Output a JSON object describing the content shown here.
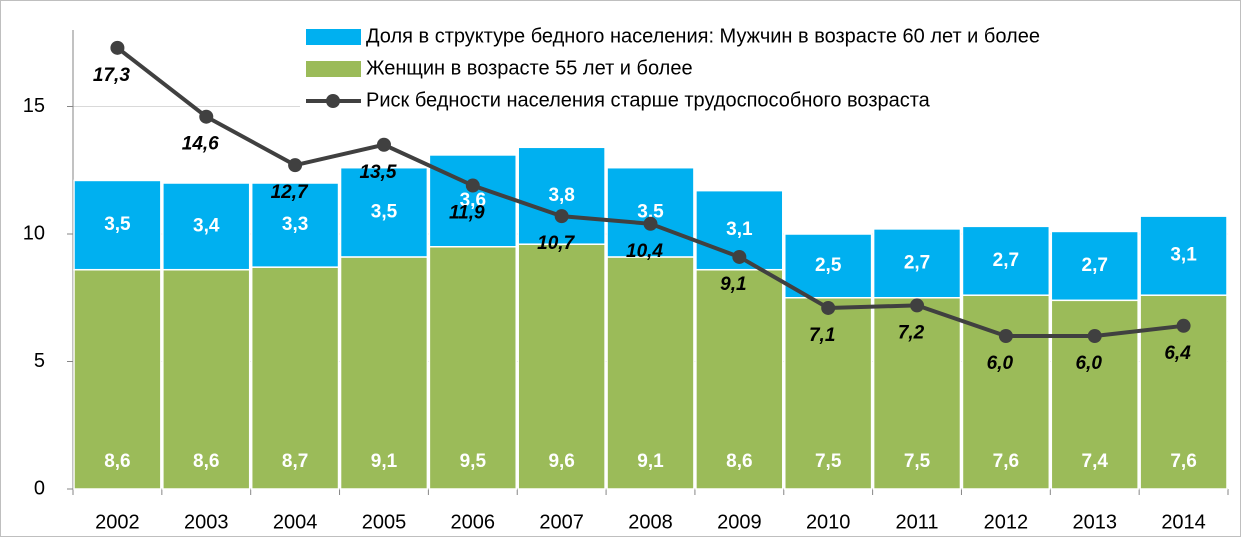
{
  "chart_data": {
    "type": "bar",
    "stacked": true,
    "categories": [
      "2002",
      "2003",
      "2004",
      "2005",
      "2006",
      "2007",
      "2008",
      "2009",
      "2010",
      "2011",
      "2012",
      "2013",
      "2014"
    ],
    "series": [
      {
        "name": "Женщин в возрасте 55 лет и более",
        "color": "#9bbb59",
        "values": [
          8.6,
          8.6,
          8.7,
          9.1,
          9.5,
          9.6,
          9.1,
          8.6,
          7.5,
          7.5,
          7.6,
          7.4,
          7.6
        ],
        "value_labels": [
          "8,6",
          "8,6",
          "8,7",
          "9,1",
          "9,5",
          "9,6",
          "9,1",
          "8,6",
          "7,5",
          "7,5",
          "7,6",
          "7,4",
          "7,6"
        ]
      },
      {
        "name": "Доля в структуре бедного населения: Мужчин в возрасте 60 лет и более",
        "color": "#00b0f0",
        "values": [
          3.5,
          3.4,
          3.3,
          3.5,
          3.6,
          3.8,
          3.5,
          3.1,
          2.5,
          2.7,
          2.7,
          2.7,
          3.1
        ],
        "value_labels": [
          "3,5",
          "3,4",
          "3,3",
          "3,5",
          "3,6",
          "3,8",
          "3,5",
          "3,1",
          "2,5",
          "2,7",
          "2,7",
          "2,7",
          "3,1"
        ]
      },
      {
        "name": "Риск бедности населения старше трудоспособного возраста",
        "color": "#404040",
        "type": "line",
        "values": [
          17.3,
          14.6,
          12.7,
          13.5,
          11.9,
          10.7,
          10.4,
          9.1,
          7.1,
          7.2,
          6.0,
          6.0,
          6.4
        ],
        "value_labels": [
          "17,3",
          "14,6",
          "12,7",
          "13,5",
          "11,9",
          "10,7",
          "10,4",
          "9,1",
          "7,1",
          "7,2",
          "6,0",
          "6,0",
          "6,4"
        ]
      }
    ],
    "ylim": [
      0,
      18
    ],
    "yticks": [
      0,
      5,
      10,
      15
    ],
    "grid": true
  }
}
